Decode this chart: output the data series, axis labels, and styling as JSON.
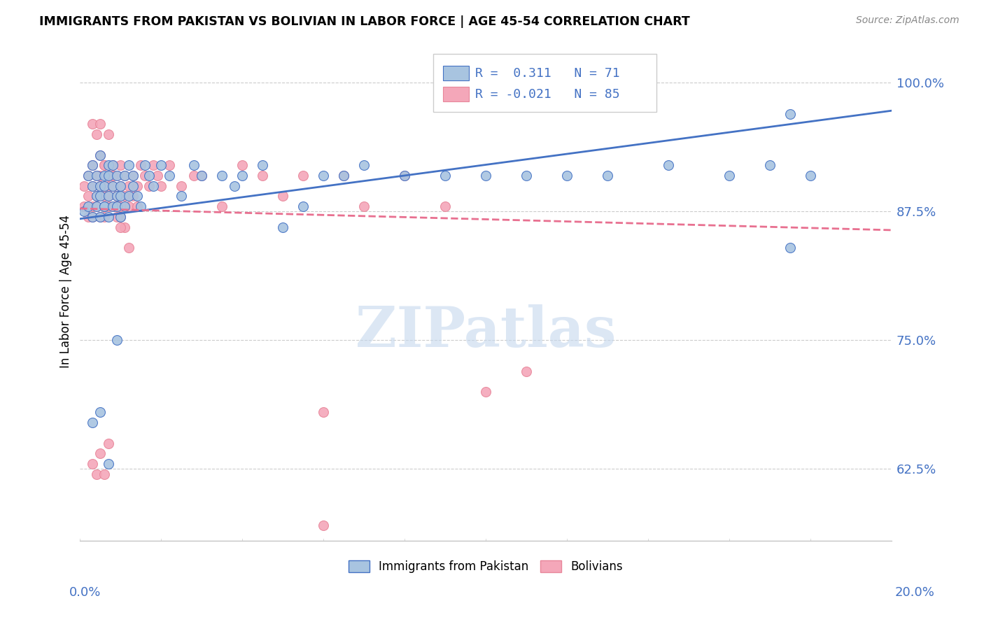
{
  "title": "IMMIGRANTS FROM PAKISTAN VS BOLIVIAN IN LABOR FORCE | AGE 45-54 CORRELATION CHART",
  "source": "Source: ZipAtlas.com",
  "ylabel": "In Labor Force | Age 45-54",
  "ytick_labels": [
    "62.5%",
    "75.0%",
    "87.5%",
    "100.0%"
  ],
  "ytick_values": [
    0.625,
    0.75,
    0.875,
    1.0
  ],
  "xlim": [
    0.0,
    0.2
  ],
  "ylim": [
    0.555,
    1.04
  ],
  "legend_R_blue": "0.311",
  "legend_N_blue": "71",
  "legend_R_pink": "-0.021",
  "legend_N_pink": "85",
  "color_blue_fill": "#a8c4e0",
  "color_blue_edge": "#4472C4",
  "color_pink_fill": "#f4a7b9",
  "color_pink_edge": "#E8869A",
  "color_blue_line": "#4472C4",
  "color_pink_line": "#E87090",
  "watermark": "ZIPatlas",
  "blue_x": [
    0.001,
    0.002,
    0.002,
    0.003,
    0.003,
    0.003,
    0.004,
    0.004,
    0.004,
    0.005,
    0.005,
    0.005,
    0.005,
    0.006,
    0.006,
    0.006,
    0.006,
    0.007,
    0.007,
    0.007,
    0.007,
    0.008,
    0.008,
    0.008,
    0.009,
    0.009,
    0.009,
    0.01,
    0.01,
    0.01,
    0.011,
    0.011,
    0.012,
    0.012,
    0.013,
    0.013,
    0.014,
    0.015,
    0.016,
    0.017,
    0.018,
    0.02,
    0.022,
    0.025,
    0.028,
    0.03,
    0.035,
    0.038,
    0.04,
    0.045,
    0.05,
    0.055,
    0.06,
    0.065,
    0.07,
    0.08,
    0.09,
    0.1,
    0.11,
    0.12,
    0.13,
    0.145,
    0.16,
    0.17,
    0.175,
    0.18,
    0.003,
    0.005,
    0.007,
    0.009,
    0.175
  ],
  "blue_y": [
    0.875,
    0.91,
    0.88,
    0.9,
    0.87,
    0.92,
    0.89,
    0.91,
    0.88,
    0.9,
    0.87,
    0.89,
    0.93,
    0.88,
    0.91,
    0.88,
    0.9,
    0.87,
    0.89,
    0.91,
    0.92,
    0.88,
    0.9,
    0.92,
    0.89,
    0.91,
    0.88,
    0.9,
    0.87,
    0.89,
    0.88,
    0.91,
    0.89,
    0.92,
    0.9,
    0.91,
    0.89,
    0.88,
    0.92,
    0.91,
    0.9,
    0.92,
    0.91,
    0.89,
    0.92,
    0.91,
    0.91,
    0.9,
    0.91,
    0.92,
    0.86,
    0.88,
    0.91,
    0.91,
    0.92,
    0.91,
    0.91,
    0.91,
    0.91,
    0.91,
    0.91,
    0.92,
    0.91,
    0.92,
    0.84,
    0.91,
    0.67,
    0.68,
    0.63,
    0.75,
    0.97
  ],
  "pink_x": [
    0.001,
    0.001,
    0.002,
    0.002,
    0.002,
    0.003,
    0.003,
    0.003,
    0.003,
    0.004,
    0.004,
    0.004,
    0.005,
    0.005,
    0.005,
    0.005,
    0.005,
    0.006,
    0.006,
    0.006,
    0.006,
    0.006,
    0.007,
    0.007,
    0.007,
    0.007,
    0.008,
    0.008,
    0.008,
    0.008,
    0.009,
    0.009,
    0.009,
    0.01,
    0.01,
    0.01,
    0.011,
    0.011,
    0.012,
    0.012,
    0.013,
    0.013,
    0.014,
    0.014,
    0.015,
    0.016,
    0.017,
    0.018,
    0.019,
    0.02,
    0.022,
    0.025,
    0.028,
    0.03,
    0.035,
    0.04,
    0.045,
    0.05,
    0.055,
    0.06,
    0.065,
    0.07,
    0.08,
    0.09,
    0.1,
    0.003,
    0.004,
    0.005,
    0.006,
    0.007,
    0.008,
    0.009,
    0.01,
    0.011,
    0.012,
    0.003,
    0.004,
    0.005,
    0.006,
    0.007,
    0.008,
    0.009,
    0.01,
    0.06,
    0.11
  ],
  "pink_y": [
    0.88,
    0.9,
    0.87,
    0.89,
    0.91,
    0.88,
    0.9,
    0.92,
    0.87,
    0.89,
    0.91,
    0.88,
    0.9,
    0.87,
    0.89,
    0.91,
    0.93,
    0.88,
    0.9,
    0.87,
    0.92,
    0.89,
    0.88,
    0.9,
    0.91,
    0.89,
    0.88,
    0.9,
    0.91,
    0.92,
    0.89,
    0.91,
    0.88,
    0.9,
    0.87,
    0.92,
    0.89,
    0.91,
    0.88,
    0.9,
    0.89,
    0.91,
    0.88,
    0.9,
    0.92,
    0.91,
    0.9,
    0.92,
    0.91,
    0.9,
    0.92,
    0.9,
    0.91,
    0.91,
    0.88,
    0.92,
    0.91,
    0.89,
    0.91,
    0.68,
    0.91,
    0.88,
    0.91,
    0.88,
    0.7,
    0.96,
    0.95,
    0.96,
    0.92,
    0.95,
    0.91,
    0.89,
    0.88,
    0.86,
    0.84,
    0.63,
    0.62,
    0.64,
    0.62,
    0.65,
    0.88,
    0.87,
    0.86,
    0.57,
    0.72
  ],
  "blue_trend_x": [
    0.0,
    0.2
  ],
  "blue_trend_y": [
    0.868,
    0.973
  ],
  "pink_trend_x": [
    0.0,
    0.2
  ],
  "pink_trend_y": [
    0.878,
    0.857
  ]
}
